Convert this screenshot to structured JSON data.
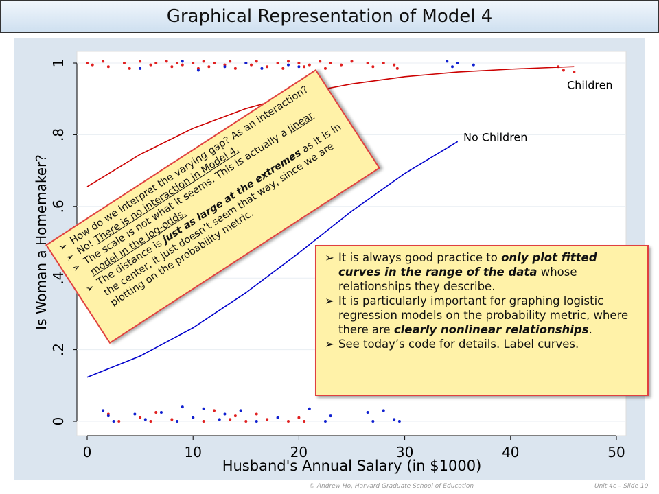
{
  "header": {
    "title": "Graphical Representation of Model 4"
  },
  "chart_data": [
    {
      "type": "line",
      "ylabel": "Is Woman a Homemaker?",
      "xlabel": "Husband's Annual Salary (in $1000)",
      "xlim": [
        0,
        50
      ],
      "ylim": [
        0,
        1
      ],
      "xticks": [
        0,
        10,
        20,
        30,
        40,
        50
      ],
      "yticks": [
        0,
        {
          "value": 0.2,
          "label": ".2"
        },
        {
          "value": 0.4,
          "label": ".4"
        },
        {
          "value": 0.6,
          "label": ".6"
        },
        {
          "value": 0.8,
          "label": ".8"
        },
        1
      ],
      "series": [
        {
          "name": "Children",
          "color": "#cc0000",
          "x": [
            0,
            5,
            10,
            15,
            20,
            25,
            30,
            35,
            40,
            45,
            46
          ],
          "values": [
            0.655,
            0.745,
            0.818,
            0.873,
            0.914,
            0.942,
            0.962,
            0.975,
            0.983,
            0.989,
            0.99
          ]
        },
        {
          "name": "No Children",
          "color": "#0000cc",
          "x": [
            0,
            5,
            10,
            15,
            20,
            25,
            30,
            35
          ],
          "values": [
            0.123,
            0.182,
            0.261,
            0.359,
            0.47,
            0.587,
            0.692,
            0.781
          ]
        }
      ]
    },
    {
      "type": "scatter",
      "xlim": [
        0,
        50
      ],
      "ylim": [
        0,
        1
      ],
      "series": [
        {
          "color": "#e02020",
          "x": [
            0,
            0.5,
            1.5,
            2,
            3.5,
            4,
            5,
            6,
            6.5,
            7.5,
            8,
            8.5,
            9,
            10,
            10.5,
            11,
            11.5,
            12,
            13,
            13.5,
            14,
            15,
            15.5,
            16,
            17,
            18,
            18.5,
            19,
            20,
            20.5,
            21,
            22,
            22.5,
            23,
            24,
            25,
            26.5,
            27,
            28,
            29,
            29.3,
            44.5,
            45,
            46
          ],
          "values": [
            1.0,
            0.995,
            1.005,
            0.99,
            1.0,
            0.985,
            1.005,
            0.995,
            1.0,
            1.005,
            0.99,
            1.0,
            0.995,
            1.0,
            0.985,
            1.005,
            0.99,
            1.0,
            0.995,
            1.005,
            0.985,
            1.0,
            0.995,
            1.005,
            0.99,
            1.0,
            0.985,
            1.005,
            1.0,
            0.99,
            0.995,
            1.005,
            0.985,
            1.0,
            0.995,
            1.005,
            1.0,
            0.99,
            1.0,
            0.995,
            0.985,
            0.99,
            0.98,
            0.975
          ]
        },
        {
          "color": "#1020d0",
          "x": [
            5,
            9,
            10.5,
            13,
            15,
            16.5,
            19,
            20,
            34,
            34.5,
            35,
            36.5
          ],
          "values": [
            0.985,
            1.005,
            0.98,
            0.99,
            1.0,
            0.985,
            0.995,
            0.99,
            1.005,
            0.99,
            1.0,
            0.995
          ]
        },
        {
          "color": "#e02020",
          "x": [
            2,
            3,
            5,
            6,
            6.5,
            8,
            10,
            11,
            12,
            13.5,
            14,
            15,
            16,
            17,
            19,
            20,
            20.5
          ],
          "values": [
            0.02,
            0.0,
            0.01,
            0.0,
            0.025,
            0.005,
            0.01,
            0.0,
            0.03,
            0.005,
            0.015,
            0.0,
            0.02,
            0.005,
            0.0,
            0.01,
            0.0
          ]
        },
        {
          "color": "#1020d0",
          "x": [
            1.5,
            2,
            2.5,
            4.5,
            5.5,
            7,
            8.5,
            9,
            10,
            11,
            12.5,
            13,
            14.5,
            16,
            18,
            21,
            22.5,
            23,
            26.5,
            27,
            28,
            29,
            29.5
          ],
          "values": [
            0.03,
            0.015,
            0.0,
            0.02,
            0.005,
            0.025,
            0.0,
            0.04,
            0.01,
            0.035,
            0.005,
            0.02,
            0.03,
            0.0,
            0.01,
            0.035,
            0.0,
            0.015,
            0.025,
            0.0,
            0.03,
            0.005,
            0.0
          ]
        }
      ]
    }
  ],
  "callouts": [
    {
      "bullets": [
        [
          {
            "text": "How do we interpret the varying gap?  As an interaction?",
            "style": ""
          }
        ],
        [
          {
            "text": "No!  ",
            "style": ""
          },
          {
            "text": "There is no interaction in Model 4.",
            "style": "u"
          }
        ],
        [
          {
            "text": "The scale is not what it seems.  This is actually a ",
            "style": ""
          },
          {
            "text": "linear model in the log-odds.",
            "style": "u"
          }
        ],
        [
          {
            "text": "The distance is ",
            "style": ""
          },
          {
            "text": "just as large at the extremes",
            "style": "bi"
          },
          {
            "text": " as it is in the center, it just doesn’t seem that way, since we are plotting on the probability metric.",
            "style": ""
          }
        ]
      ]
    },
    {
      "bullets": [
        [
          {
            "text": "It is always good practice to ",
            "style": ""
          },
          {
            "text": "only plot fitted curves in the range of the data",
            "style": "bi"
          },
          {
            "text": " whose relationships they describe.",
            "style": ""
          }
        ],
        [
          {
            "text": "It is particularly important for graphing logistic regression models on the probability metric, where there are ",
            "style": ""
          },
          {
            "text": "clearly nonlinear relationships",
            "style": "bi"
          },
          {
            "text": ".",
            "style": ""
          }
        ],
        [
          {
            "text": "See today’s code for details.  Label curves.",
            "style": ""
          }
        ]
      ]
    }
  ],
  "footer": {
    "credit": "© Andrew Ho, Harvard Graduate School of Education",
    "slide": "Unit 4c – Slide 10"
  }
}
